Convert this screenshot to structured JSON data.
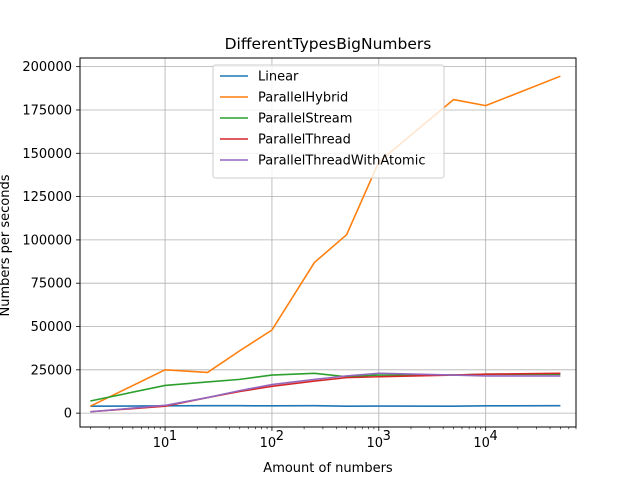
{
  "chart_data": {
    "type": "line",
    "title": "DifferentTypesBigNumbers",
    "xlabel": "Amount of numbers",
    "ylabel": "Numbers per seconds",
    "xscale": "log",
    "xlim": [
      1.6,
      70000
    ],
    "ylim": [
      -8000,
      205000
    ],
    "grid": true,
    "legend_position": "top-center",
    "yticks": [
      0,
      25000,
      50000,
      75000,
      100000,
      125000,
      150000,
      175000,
      200000
    ],
    "ytick_labels": [
      "0",
      "25000",
      "50000",
      "75000",
      "100000",
      "125000",
      "150000",
      "175000",
      "200000"
    ],
    "xticks": [
      10,
      100,
      1000,
      10000
    ],
    "xtick_labels": [
      "10",
      "10",
      "10",
      "10"
    ],
    "xtick_exponents": [
      "1",
      "2",
      "3",
      "4"
    ],
    "series": [
      {
        "name": "Linear",
        "color": "#1f77b4",
        "x": [
          2,
          10,
          25,
          50,
          100,
          250,
          500,
          1000,
          5000,
          10000,
          50000
        ],
        "y": [
          4000,
          4200,
          4300,
          4300,
          4200,
          4300,
          4000,
          4100,
          4000,
          4200,
          4300
        ]
      },
      {
        "name": "ParallelHybrid",
        "color": "#ff7f0e",
        "x": [
          2,
          10,
          25,
          50,
          100,
          250,
          500,
          1000,
          5000,
          10000,
          50000
        ],
        "y": [
          4000,
          25000,
          23500,
          36000,
          48000,
          87000,
          103000,
          145000,
          181000,
          177500,
          194500
        ]
      },
      {
        "name": "ParallelStream",
        "color": "#2ca02c",
        "x": [
          2,
          10,
          25,
          50,
          100,
          250,
          500,
          1000,
          5000,
          10000,
          50000
        ],
        "y": [
          7000,
          16000,
          18000,
          19500,
          22000,
          23000,
          21000,
          22000,
          22000,
          22500,
          22500
        ]
      },
      {
        "name": "ParallelThread",
        "color": "#d62728",
        "x": [
          2,
          10,
          25,
          50,
          100,
          250,
          500,
          1000,
          5000,
          10000,
          50000
        ],
        "y": [
          800,
          4000,
          9000,
          12500,
          15500,
          18500,
          20500,
          21000,
          22000,
          22500,
          23000
        ]
      },
      {
        "name": "ParallelThreadWithAtomic",
        "color": "#9467bd",
        "x": [
          2,
          10,
          25,
          50,
          100,
          250,
          500,
          1000,
          5000,
          10000,
          50000
        ],
        "y": [
          800,
          4500,
          9000,
          13000,
          16500,
          19500,
          21500,
          23000,
          22000,
          21500,
          21500
        ]
      }
    ]
  }
}
